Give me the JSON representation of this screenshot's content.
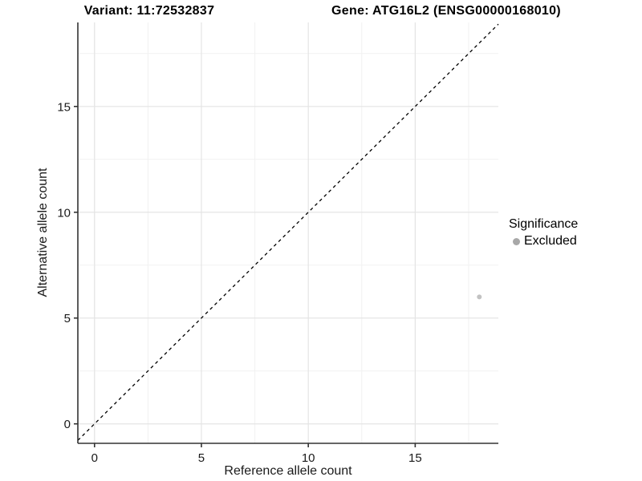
{
  "chart_data": {
    "type": "scatter",
    "titles": {
      "left": "Variant: 11:72532837",
      "right": "Gene: ATG16L2 (ENSG00000168010)"
    },
    "xlabel": "Reference allele count",
    "ylabel": "Alternative allele count",
    "xlim": [
      -0.78,
      18.89
    ],
    "ylim": [
      -0.92,
      18.97
    ],
    "xticks": [
      0,
      5,
      10,
      15
    ],
    "yticks": [
      0,
      5,
      10,
      15
    ],
    "xticks_minor": [
      2.5,
      7.5,
      12.5,
      17.5
    ],
    "yticks_minor": [
      2.5,
      7.5,
      12.5,
      17.5
    ],
    "grid": true,
    "identity_line": {
      "show": true,
      "style": "dashed",
      "color": "#000000"
    },
    "points": [
      {
        "x": 18,
        "y": 6,
        "series": "Excluded",
        "color": "#c2c2c2",
        "radius": 3
      }
    ],
    "legend": {
      "title": "Significance",
      "position": "right",
      "items": [
        {
          "label": "Excluded",
          "color": "#a8a8a8"
        }
      ]
    },
    "colors": {
      "axis": "#333333",
      "grid_major": "#e4e4e4",
      "grid_minor": "#f1f1f1",
      "tick_label": "#1a1a1a",
      "background": "#ffffff"
    }
  }
}
